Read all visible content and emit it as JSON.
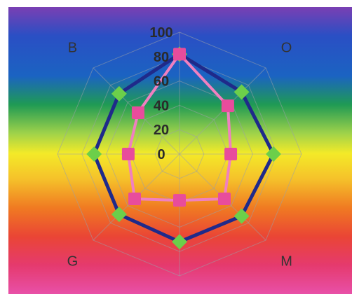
{
  "chart_data": {
    "type": "radar",
    "title": "",
    "categories": [
      "",
      "O",
      "",
      "M",
      "",
      "G",
      "",
      "B"
    ],
    "radial_ticks": [
      "0",
      "20",
      "40",
      "60",
      "80",
      "100"
    ],
    "rlim": [
      0,
      100
    ],
    "grid": true,
    "background": "rainbow-gradient",
    "series": [
      {
        "name": "",
        "color": "#1f2a8a",
        "marker": "diamond",
        "marker_color": "#6ccf4a",
        "values": [
          82,
          72,
          77,
          72,
          72,
          70,
          70,
          70
        ]
      },
      {
        "name": "",
        "color": "#f080c0",
        "marker": "square",
        "marker_color": "#e84c9c",
        "values": [
          82,
          56,
          42,
          52,
          38,
          52,
          42,
          48
        ]
      }
    ]
  },
  "colors": {
    "band_purple": "#7a3fb3",
    "band_blue": "#1e63c8",
    "band_green": "#1f9a54",
    "band_yellow": "#f4e92a",
    "band_orange": "#f07a22",
    "band_red": "#e8344a",
    "band_pink": "#e6489a",
    "grid": "#9aa0a8"
  }
}
